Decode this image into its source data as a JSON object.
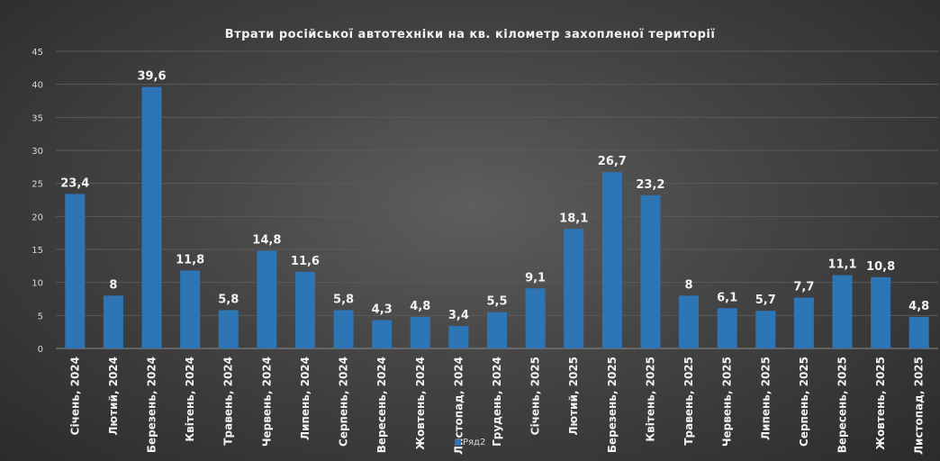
{
  "chart_data": {
    "type": "bar",
    "title": "Втрати російської автотехніки на кв. кілометр захопленої території",
    "categories": [
      "Січень, 2024",
      "Лютий, 2024",
      "Березень, 2024",
      "Квітень, 2024",
      "Травень, 2024",
      "Червень, 2024",
      "Липень, 2024",
      "Серпень, 2024",
      "Вересень, 2024",
      "Жовтень, 2024",
      "Листопад, 2024",
      "Грудень,  2024",
      "Січень,  2025",
      "Лютий,  2025",
      "Березень,  2025",
      "Квітень,  2025",
      "Травень,  2025",
      "Червень,  2025",
      "Липень,  2025",
      "Серпень,  2025",
      "Вересень,  2025",
      "Жовтень,  2025",
      "Листопад,  2025"
    ],
    "series": [
      {
        "name": "Ряд2",
        "values": [
          23.4,
          8,
          39.6,
          11.8,
          5.8,
          14.8,
          11.6,
          5.8,
          4.3,
          4.8,
          3.4,
          5.5,
          9.1,
          18.1,
          26.7,
          23.2,
          8,
          6.1,
          5.7,
          7.7,
          11.1,
          10.8,
          4.8
        ],
        "labels": [
          "23,4",
          "8",
          "39,6",
          "11,8",
          "5,8",
          "14,8",
          "11,6",
          "5,8",
          "4,3",
          "4,8",
          "3,4",
          "5,5",
          "9,1",
          "18,1",
          "26,7",
          "23,2",
          "8",
          "6,1",
          "5,7",
          "7,7",
          "11,1",
          "10,8",
          "4,8"
        ]
      }
    ],
    "xlabel": "",
    "ylabel": "",
    "ylim": [
      0,
      45
    ],
    "yticks": [
      0,
      5,
      10,
      15,
      20,
      25,
      30,
      35,
      40,
      45
    ],
    "grid": true,
    "legend": "bottom",
    "colors": {
      "bar": "#2e75b6",
      "grid": "#5a5a5a",
      "text": "#f2f2f2"
    }
  }
}
